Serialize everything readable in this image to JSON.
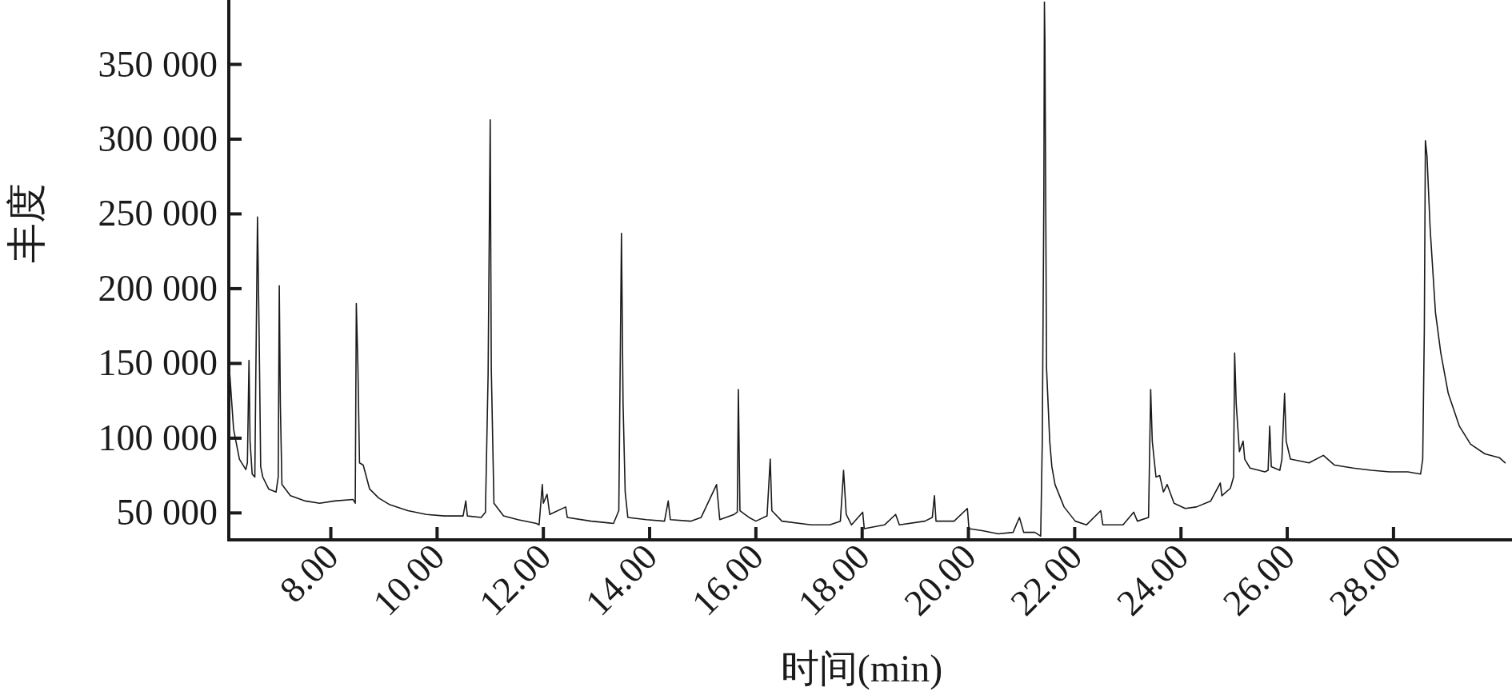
{
  "chart_data": {
    "type": "line",
    "xlabel": "时间(min)",
    "ylabel": "丰度",
    "xlim": [
      6.08,
      30.2
    ],
    "ylim": [
      32000,
      392000
    ],
    "xticks": [
      {
        "value": 8,
        "label": "8.00"
      },
      {
        "value": 10,
        "label": "10.00"
      },
      {
        "value": 12,
        "label": "12.00"
      },
      {
        "value": 14,
        "label": "14.00"
      },
      {
        "value": 16,
        "label": "16.00"
      },
      {
        "value": 18,
        "label": "18.00"
      },
      {
        "value": 20,
        "label": "20.00"
      },
      {
        "value": 22,
        "label": "22.00"
      },
      {
        "value": 24,
        "label": "24.00"
      },
      {
        "value": 26,
        "label": "26.00"
      },
      {
        "value": 28,
        "label": "28.00"
      }
    ],
    "yticks": [
      {
        "value": 50000,
        "label": "50 000"
      },
      {
        "value": 100000,
        "label": "100 000"
      },
      {
        "value": 150000,
        "label": "150 000"
      },
      {
        "value": 200000,
        "label": "200 000"
      },
      {
        "value": 250000,
        "label": "250 000"
      },
      {
        "value": 300000,
        "label": "300 000"
      },
      {
        "value": 350000,
        "label": "350 000"
      }
    ],
    "grid": false,
    "marker": "none",
    "line_style": "solid",
    "series": [
      {
        "color": "#1a1a1a",
        "x": [
          6.1,
          6.17,
          6.28,
          6.4,
          6.43,
          6.46,
          6.48,
          6.52,
          6.57,
          6.59,
          6.62,
          6.65,
          6.68,
          6.72,
          6.83,
          6.97,
          7.01,
          7.03,
          7.05,
          7.08,
          7.24,
          7.52,
          7.79,
          8.07,
          8.42,
          8.46,
          8.48,
          8.51,
          8.54,
          8.61,
          8.73,
          8.9,
          9.11,
          9.45,
          9.8,
          10.14,
          10.49,
          10.54,
          10.57,
          10.83,
          10.91,
          10.96,
          11.0,
          11.02,
          11.07,
          11.25,
          11.52,
          11.87,
          11.92,
          11.98,
          12.0,
          12.07,
          12.12,
          12.42,
          12.45,
          12.9,
          13.32,
          13.42,
          13.47,
          13.5,
          13.54,
          13.59,
          13.94,
          14.28,
          14.35,
          14.39,
          14.77,
          14.97,
          15.26,
          15.32,
          15.59,
          15.65,
          15.67,
          15.7,
          15.87,
          16.0,
          16.21,
          16.27,
          16.3,
          16.49,
          17.04,
          17.39,
          17.59,
          17.65,
          17.7,
          17.8,
          18.01,
          18.04,
          18.42,
          18.63,
          18.7,
          19.18,
          19.32,
          19.36,
          19.39,
          19.73,
          19.98,
          20.01,
          20.28,
          20.56,
          20.84,
          20.96,
          21.04,
          21.25,
          21.36,
          21.39,
          21.42,
          21.43,
          21.44,
          21.47,
          21.53,
          21.57,
          21.63,
          21.8,
          22.01,
          22.22,
          22.49,
          22.53,
          22.91,
          23.11,
          23.18,
          23.39,
          23.43,
          23.46,
          23.53,
          23.6,
          23.67,
          23.74,
          23.87,
          24.08,
          24.29,
          24.56,
          24.74,
          24.77,
          24.93,
          24.99,
          25.01,
          25.04,
          25.1,
          25.17,
          25.2,
          25.3,
          25.58,
          25.64,
          25.67,
          25.7,
          25.86,
          25.9,
          25.95,
          25.98,
          26.06,
          26.41,
          26.68,
          26.89,
          27.24,
          27.58,
          27.93,
          28.27,
          28.51,
          28.55,
          28.58,
          28.6,
          28.63,
          28.69,
          28.79,
          28.89,
          29.03,
          29.24,
          29.45,
          29.72,
          29.99,
          30.1
        ],
        "values": [
          142000,
          106000,
          86000,
          79000,
          83500,
          152000,
          98000,
          76000,
          74000,
          147000,
          248000,
          172000,
          81000,
          74000,
          66000,
          64000,
          74000,
          202000,
          123000,
          69000,
          61500,
          58000,
          56500,
          58000,
          59000,
          56500,
          190000,
          147000,
          83500,
          82000,
          66000,
          60000,
          55500,
          51500,
          49000,
          48000,
          48000,
          58000,
          48000,
          47000,
          50500,
          142000,
          313000,
          147000,
          56500,
          48000,
          45500,
          43000,
          42000,
          69000,
          56500,
          62500,
          49000,
          54000,
          47000,
          44500,
          43000,
          51500,
          237000,
          123000,
          64000,
          47000,
          45500,
          44500,
          58000,
          45500,
          44500,
          47000,
          69000,
          45500,
          49000,
          50500,
          132500,
          51500,
          47000,
          44500,
          48000,
          86000,
          51500,
          44500,
          42000,
          42000,
          44500,
          78500,
          49000,
          42000,
          50500,
          39500,
          42000,
          49000,
          42000,
          44500,
          47000,
          61500,
          44500,
          44500,
          53000,
          39500,
          38000,
          36000,
          37000,
          47000,
          37000,
          37000,
          34500,
          98000,
          265000,
          392000,
          365000,
          147000,
          98000,
          81000,
          69000,
          54000,
          44500,
          42000,
          51500,
          42000,
          42000,
          50500,
          44500,
          47000,
          132500,
          98000,
          74000,
          75000,
          64000,
          69000,
          56500,
          53000,
          54000,
          58000,
          70000,
          61500,
          66500,
          74000,
          157000,
          123000,
          91000,
          98000,
          86000,
          80000,
          77500,
          78500,
          108000,
          81000,
          78500,
          86000,
          130000,
          98000,
          86000,
          83500,
          88500,
          82000,
          80000,
          78500,
          77500,
          77500,
          76000,
          86000,
          172000,
          299000,
          289000,
          240000,
          184000,
          157000,
          130000,
          108000,
          96000,
          89500,
          87000,
          83500
        ]
      }
    ]
  }
}
